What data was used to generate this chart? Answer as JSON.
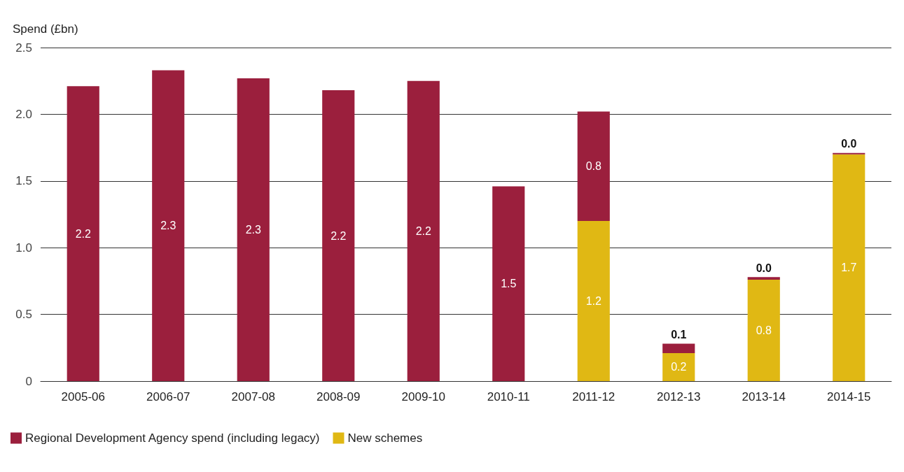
{
  "chart_data": {
    "type": "bar",
    "ylabel": "Spend (£bn)",
    "categories": [
      "2005-06",
      "2006-07",
      "2007-08",
      "2008-09",
      "2009-10",
      "2010-11",
      "2011-12",
      "2012-13",
      "2013-14",
      "2014-15"
    ],
    "stacked": true,
    "series": [
      {
        "name": "New schemes",
        "color": "#e0b814",
        "values": [
          null,
          null,
          null,
          null,
          null,
          null,
          1.2,
          0.21,
          0.76,
          1.7
        ],
        "value_labels": [
          null,
          null,
          null,
          null,
          null,
          null,
          "1.2",
          "0.2",
          "0.8",
          "1.7"
        ]
      },
      {
        "name": "Regional Development Agency spend (including legacy)",
        "color": "#9b1f3d",
        "values": [
          2.21,
          2.33,
          2.27,
          2.18,
          2.25,
          1.46,
          0.82,
          0.07,
          0.02,
          0.01
        ],
        "value_labels": [
          "2.2",
          "2.3",
          "2.3",
          "2.2",
          "2.2",
          "1.5",
          "0.8",
          "0.1",
          "0.0",
          "0.0"
        ]
      }
    ],
    "ylim": [
      0,
      2.5
    ],
    "yticks": [
      0,
      0.5,
      {
        "value": 1,
        "label": "1.0"
      },
      1.5,
      {
        "value": 2,
        "label": "2.0"
      },
      2.5
    ],
    "grid": true,
    "legend": "bottom left"
  }
}
